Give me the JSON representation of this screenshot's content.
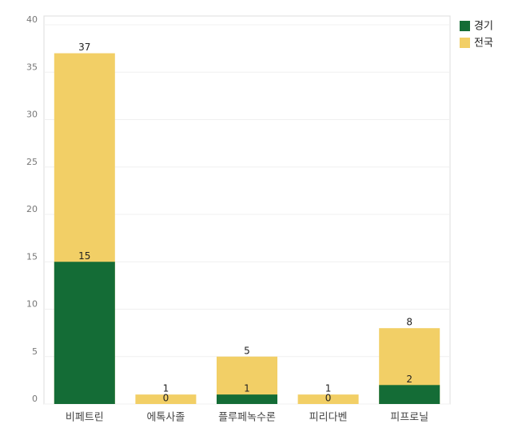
{
  "chart_data": {
    "type": "bar",
    "categories": [
      "비페트린",
      "에톡사졸",
      "플루페녹수론",
      "피리다벤",
      "피프로닐"
    ],
    "series": [
      {
        "name": "경기",
        "color": "#146c36",
        "values": [
          15,
          0,
          1,
          0,
          2
        ]
      },
      {
        "name": "전국",
        "color": "#f2cf66",
        "values": [
          37,
          1,
          5,
          1,
          8
        ]
      }
    ],
    "ylim": [
      0,
      40
    ],
    "yticks": [
      0,
      5,
      10,
      15,
      20,
      25,
      30,
      35,
      40
    ],
    "grid": true,
    "legend": "right"
  }
}
